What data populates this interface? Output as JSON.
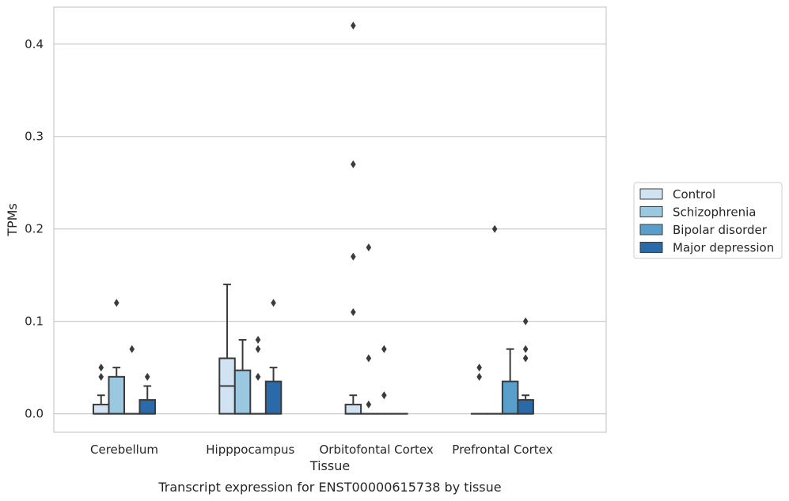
{
  "chart_data": {
    "type": "box",
    "xlabel": "Tissue",
    "ylabel": "TPMs",
    "caption": "Transcript expression for ENST00000615738 by tissue",
    "ylim": [
      -0.02,
      0.44
    ],
    "yticks": [
      0.0,
      0.1,
      0.2,
      0.3,
      0.4
    ],
    "ytick_labels": [
      "0.0",
      "0.1",
      "0.2",
      "0.3",
      "0.4"
    ],
    "grid": "horizontal",
    "legend_position": "right",
    "categories": [
      "Cerebellum",
      "Hipppocampus",
      "Orbitofontal Cortex",
      "Prefrontal Cortex"
    ],
    "series": [
      {
        "name": "Control",
        "color": "#d1e2f2",
        "boxes": [
          {
            "q1": 0.0,
            "median": 0.0,
            "q3": 0.01,
            "whisker_low": 0.0,
            "whisker_high": 0.02,
            "outliers": [
              0.04,
              0.05
            ]
          },
          {
            "q1": 0.0,
            "median": 0.03,
            "q3": 0.06,
            "whisker_low": 0.0,
            "whisker_high": 0.14,
            "outliers": []
          },
          {
            "q1": 0.0,
            "median": 0.0,
            "q3": 0.01,
            "whisker_low": 0.0,
            "whisker_high": 0.02,
            "outliers": [
              0.11,
              0.17,
              0.27,
              0.42
            ]
          },
          {
            "q1": 0.0,
            "median": 0.0,
            "q3": 0.0,
            "whisker_low": 0.0,
            "whisker_high": 0.0,
            "outliers": [
              0.04,
              0.05
            ]
          }
        ]
      },
      {
        "name": "Schizophrenia",
        "color": "#9ac8e0",
        "boxes": [
          {
            "q1": 0.0,
            "median": 0.0,
            "q3": 0.04,
            "whisker_low": 0.0,
            "whisker_high": 0.05,
            "outliers": [
              0.12
            ]
          },
          {
            "q1": 0.0,
            "median": 0.0,
            "q3": 0.047,
            "whisker_low": 0.0,
            "whisker_high": 0.08,
            "outliers": []
          },
          {
            "q1": 0.0,
            "median": 0.0,
            "q3": 0.0,
            "whisker_low": 0.0,
            "whisker_high": 0.0,
            "outliers": [
              0.01,
              0.06,
              0.18
            ]
          },
          {
            "q1": 0.0,
            "median": 0.0,
            "q3": 0.0,
            "whisker_low": 0.0,
            "whisker_high": 0.0,
            "outliers": [
              0.2
            ]
          }
        ]
      },
      {
        "name": "Bipolar disorder",
        "color": "#5a9fcb",
        "boxes": [
          {
            "q1": 0.0,
            "median": 0.0,
            "q3": 0.0,
            "whisker_low": 0.0,
            "whisker_high": 0.0,
            "outliers": [
              0.07
            ]
          },
          {
            "q1": 0.0,
            "median": 0.0,
            "q3": 0.0,
            "whisker_low": 0.0,
            "whisker_high": 0.0,
            "outliers": [
              0.04,
              0.07,
              0.08
            ]
          },
          {
            "q1": 0.0,
            "median": 0.0,
            "q3": 0.0,
            "whisker_low": 0.0,
            "whisker_high": 0.0,
            "outliers": [
              0.02,
              0.07
            ]
          },
          {
            "q1": 0.0,
            "median": 0.0,
            "q3": 0.035,
            "whisker_low": 0.0,
            "whisker_high": 0.07,
            "outliers": []
          }
        ]
      },
      {
        "name": "Major depression",
        "color": "#2a6aa8",
        "boxes": [
          {
            "q1": 0.0,
            "median": 0.0,
            "q3": 0.015,
            "whisker_low": 0.0,
            "whisker_high": 0.03,
            "outliers": [
              0.04
            ]
          },
          {
            "q1": 0.0,
            "median": 0.0,
            "q3": 0.035,
            "whisker_low": 0.0,
            "whisker_high": 0.05,
            "outliers": [
              0.12
            ]
          },
          {
            "q1": 0.0,
            "median": 0.0,
            "q3": 0.0,
            "whisker_low": 0.0,
            "whisker_high": 0.0,
            "outliers": []
          },
          {
            "q1": 0.0,
            "median": 0.0,
            "q3": 0.015,
            "whisker_low": 0.0,
            "whisker_high": 0.02,
            "outliers": [
              0.06,
              0.07,
              0.1
            ]
          }
        ]
      }
    ]
  }
}
